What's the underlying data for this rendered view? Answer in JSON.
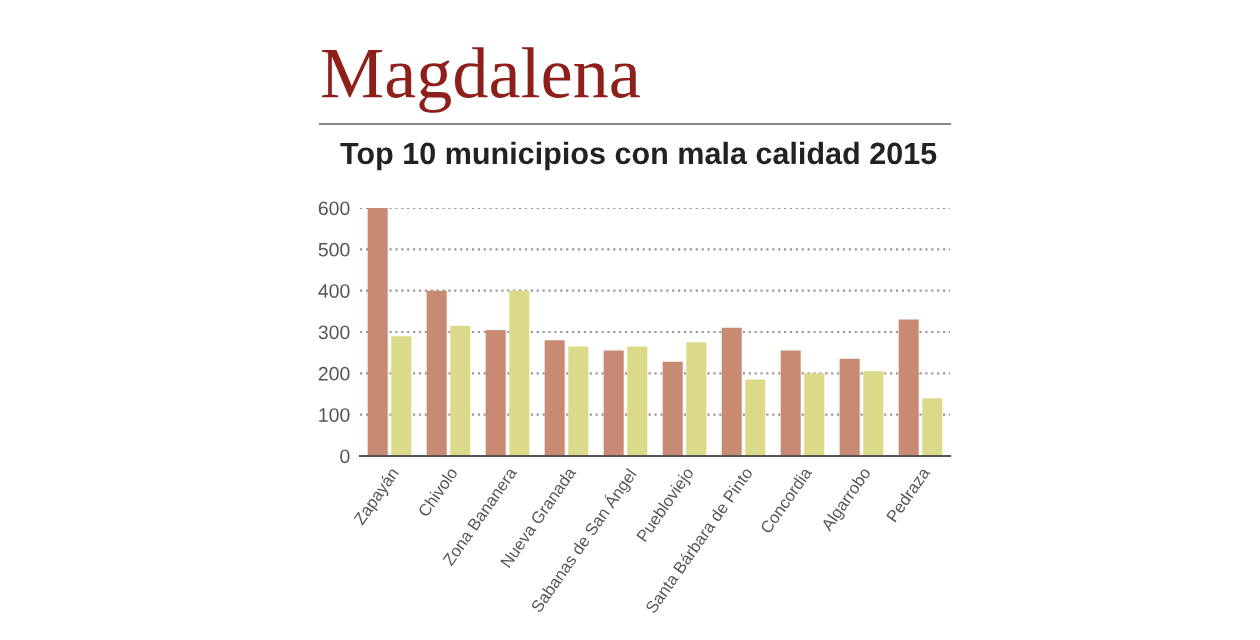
{
  "chart_data": {
    "type": "bar",
    "title": "Magdalena",
    "subtitle": "Top 10 municipios con mala calidad 2015",
    "categories": [
      "Zapayán",
      "Chivolo",
      "Zona Bananera",
      "Nueva Granada",
      "Sabanas de San Ángel",
      "Puebloviejo",
      "Santa Bárbara de Pinto",
      "Concordia",
      "Algarrobo",
      "Pedraza"
    ],
    "series": [
      {
        "color": "#c98a74",
        "values": [
          600,
          400,
          305,
          280,
          255,
          228,
          310,
          255,
          235,
          330
        ]
      },
      {
        "color": "#dada88",
        "values": [
          290,
          315,
          400,
          265,
          265,
          275,
          185,
          200,
          205,
          140
        ]
      }
    ],
    "ylim": [
      0,
      600
    ],
    "yticks": [
      0,
      100,
      200,
      300,
      400,
      500,
      600
    ],
    "grid": "y",
    "legend": false
  }
}
